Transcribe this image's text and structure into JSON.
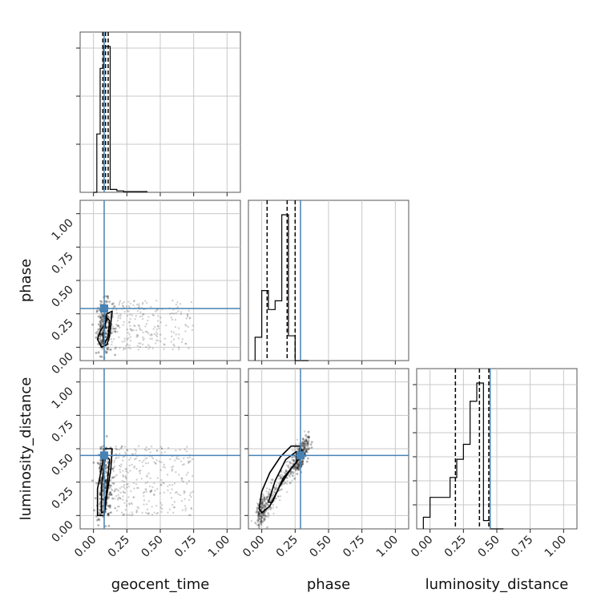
{
  "chart_data": {
    "type": "corner",
    "parameters": [
      "geocent_time",
      "phase",
      "luminosity_distance"
    ],
    "axis_range": [
      -0.1,
      1.1
    ],
    "tick_values": [
      0.0,
      0.25,
      0.5,
      0.75,
      1.0
    ],
    "tick_labels": [
      "0.00",
      "0.25",
      "0.50",
      "0.75",
      "1.00"
    ],
    "grid": true,
    "truth_color": "#4682b4",
    "truths": {
      "geocent_time": 0.08,
      "phase": 0.29,
      "luminosity_distance": 0.45
    },
    "quantiles": {
      "geocent_time": [
        0.07,
        0.09,
        0.11
      ],
      "phase": [
        0.04,
        0.19,
        0.25
      ],
      "luminosity_distance": [
        0.19,
        0.37,
        0.44
      ]
    },
    "histograms": [
      {
        "param": "geocent_time",
        "bin_edges": [
          0.0,
          0.025,
          0.05,
          0.075,
          0.1,
          0.125,
          0.15,
          0.175,
          0.2,
          0.225,
          0.25,
          0.275,
          0.3,
          0.325,
          0.35,
          0.375,
          0.4
        ],
        "counts": [
          0,
          40,
          85,
          100,
          100,
          2,
          2,
          1,
          1,
          0.5,
          0.5,
          0.5,
          0.5,
          0.5,
          0.5,
          0.5
        ],
        "ytick_fractions": [
          0.3,
          0.6,
          0.9
        ]
      },
      {
        "param": "phase",
        "bin_edges": [
          -0.05,
          0.0,
          0.05,
          0.1,
          0.15,
          0.2,
          0.25,
          0.3,
          0.35
        ],
        "counts": [
          16,
          48,
          35,
          41,
          100,
          17,
          0,
          0
        ],
        "ytick_fractions": []
      },
      {
        "param": "luminosity_distance",
        "bin_edges": [
          -0.05,
          0.0,
          0.05,
          0.1,
          0.15,
          0.2,
          0.25,
          0.3,
          0.35,
          0.4,
          0.45,
          0.5,
          0.55
        ],
        "counts": [
          7,
          19,
          19,
          19,
          31,
          42,
          51,
          77,
          88,
          5,
          0,
          0
        ],
        "ytick_fractions": [
          0.15,
          0.3,
          0.45,
          0.6,
          0.75,
          0.9
        ]
      }
    ],
    "scatter_panels": [
      {
        "x_param": "geocent_time",
        "y_param": "phase",
        "contours": [
          [
            [
              0.06,
              0.0
            ],
            [
              0.03,
              0.06
            ],
            [
              0.05,
              0.12
            ],
            [
              0.09,
              0.18
            ],
            [
              0.1,
              0.25
            ],
            [
              0.14,
              0.27
            ],
            [
              0.13,
              0.18
            ],
            [
              0.12,
              0.08
            ],
            [
              0.1,
              0.02
            ]
          ],
          [
            [
              0.08,
              0.02
            ],
            [
              0.07,
              0.09
            ],
            [
              0.1,
              0.22
            ],
            [
              0.12,
              0.2
            ],
            [
              0.11,
              0.08
            ]
          ]
        ],
        "cloud": {
          "x_start": 0.05,
          "x_end": 0.75,
          "y_min": -0.02,
          "y_max": 0.35,
          "points": 380
        }
      },
      {
        "x_param": "geocent_time",
        "y_param": "luminosity_distance",
        "contours": [
          [
            [
              0.03,
              0.0
            ],
            [
              0.03,
              0.2
            ],
            [
              0.07,
              0.4
            ],
            [
              0.08,
              0.5
            ],
            [
              0.14,
              0.5
            ],
            [
              0.13,
              0.35
            ],
            [
              0.1,
              0.15
            ],
            [
              0.08,
              0.0
            ]
          ],
          [
            [
              0.06,
              0.02
            ],
            [
              0.06,
              0.22
            ],
            [
              0.09,
              0.45
            ],
            [
              0.12,
              0.42
            ],
            [
              0.1,
              0.2
            ],
            [
              0.08,
              0.03
            ]
          ]
        ],
        "cloud": {
          "x_start": 0.05,
          "x_end": 0.75,
          "y_min": 0.0,
          "y_max": 0.52,
          "points": 520
        }
      },
      {
        "x_param": "phase",
        "y_param": "luminosity_distance",
        "contours": [
          [
            [
              -0.02,
              0.05
            ],
            [
              0.0,
              0.18
            ],
            [
              0.06,
              0.32
            ],
            [
              0.14,
              0.44
            ],
            [
              0.22,
              0.52
            ],
            [
              0.29,
              0.52
            ],
            [
              0.3,
              0.45
            ],
            [
              0.22,
              0.35
            ],
            [
              0.14,
              0.23
            ],
            [
              0.06,
              0.07
            ],
            [
              0.0,
              0.02
            ]
          ],
          [
            [
              0.05,
              0.1
            ],
            [
              0.1,
              0.26
            ],
            [
              0.18,
              0.42
            ],
            [
              0.26,
              0.48
            ],
            [
              0.26,
              0.4
            ],
            [
              0.16,
              0.28
            ],
            [
              0.08,
              0.1
            ]
          ]
        ],
        "cloud": {
          "x_start": -0.02,
          "x_end": 0.34,
          "y_min": 0.0,
          "y_max": 0.55,
          "points": 520
        }
      }
    ],
    "axis_labels": {
      "bottom": [
        "geocent_time",
        "phase",
        "luminosity_distance"
      ],
      "left": [
        "phase",
        "luminosity_distance"
      ]
    }
  }
}
